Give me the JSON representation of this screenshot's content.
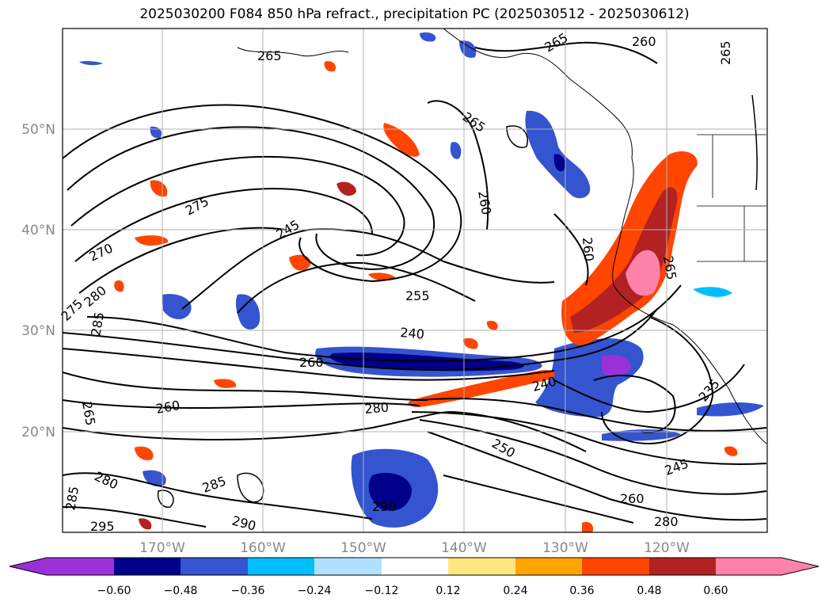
{
  "title": "2025030200 F084 850 hPa refract., precipitation PC (2025030512 - 2025030612)",
  "lat_labels": [
    "50°N",
    "40°N",
    "30°N",
    "20°N"
  ],
  "lon_labels": [
    "170°W",
    "160°W",
    "150°W",
    "140°W",
    "130°W",
    "120°W"
  ],
  "colorbar": {
    "colors": [
      "#9b30d9",
      "#00008b",
      "#3455cf",
      "#00bfff",
      "#b0e2ff",
      "#ffffff",
      "#ffe680",
      "#ffa500",
      "#ff4500",
      "#b22222",
      "#ff82ab"
    ],
    "ticks": [
      "−0.60",
      "−0.48",
      "−0.36",
      "−0.24",
      "−0.12",
      "0.12",
      "0.24",
      "0.36",
      "0.48",
      "0.60"
    ]
  },
  "contour_labels": [
    {
      "text": "265"
    },
    {
      "text": "265"
    },
    {
      "text": "260"
    },
    {
      "text": "265"
    },
    {
      "text": "265"
    },
    {
      "text": "275"
    },
    {
      "text": "270"
    },
    {
      "text": "245"
    },
    {
      "text": "260"
    },
    {
      "text": "260"
    },
    {
      "text": "265"
    },
    {
      "text": "255"
    },
    {
      "text": "240"
    },
    {
      "text": "260"
    },
    {
      "text": "240"
    },
    {
      "text": "280"
    },
    {
      "text": "260"
    },
    {
      "text": "235"
    },
    {
      "text": "250"
    },
    {
      "text": "245"
    },
    {
      "text": "260"
    },
    {
      "text": "290"
    },
    {
      "text": "290"
    },
    {
      "text": "285"
    },
    {
      "text": "280"
    },
    {
      "text": "265"
    },
    {
      "text": "280"
    },
    {
      "text": "285"
    },
    {
      "text": "285"
    },
    {
      "text": "275"
    },
    {
      "text": "280"
    },
    {
      "text": "295"
    }
  ]
}
